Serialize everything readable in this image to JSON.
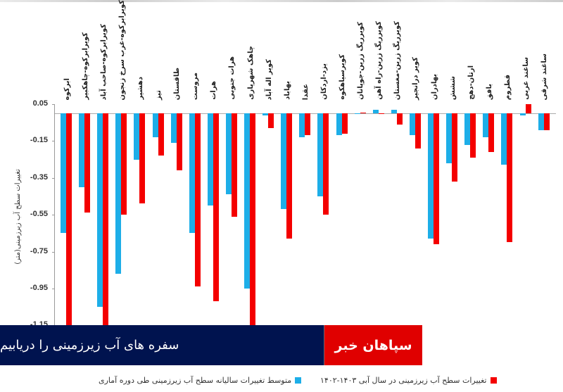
{
  "banner": {
    "brand": "سپاهان خبر",
    "title": "سفره های آب زیرزمینی را دریابیم",
    "brand_color": "#e00000",
    "title_bg_color": "#00134f"
  },
  "chart_data": {
    "type": "bar",
    "title": "",
    "ylabel": "تغییرات سطح آب زیرزمینی(متر)",
    "xlabel": "",
    "ylim": [
      -1.25,
      0.05
    ],
    "yticks": [
      "0.05",
      "-0.15",
      "-0.35",
      "-0.55",
      "-0.75",
      "-0.95",
      "-1.15"
    ],
    "grid": false,
    "legend_position": "bottom",
    "categories": [
      "ابرکوه",
      "کویرابرکوه-چاهکبیر",
      "کویرابرکوه-صاحب آباد",
      "کویرابرکوه-غرب سرخ زنجون",
      "دهشیر",
      "تیز",
      "طاقستان",
      "مروست",
      "هرات",
      "هرات جنوبی",
      "چاهک شهرپاری",
      "کویر اله آباد",
      "بهاباد",
      "عقدا",
      "یزد-اردکان",
      "کویرسیاهکوه",
      "کویرریگ زرین-جوپانان",
      "کویرریگ زرین-راه آهن",
      "کویرریگ زرین-مغستان",
      "کویر درانجیر",
      "بهادران",
      "ششش",
      "ارتان-دهج",
      "بافق",
      "قطروم",
      "ساغند غربی",
      "ساغند شرقی"
    ],
    "series": [
      {
        "name": "متوسط تغییرات سالیانه سطح آب زیرزمینی طی دوره آماری",
        "color": "#1daee8",
        "values": [
          -0.65,
          -0.4,
          -1.05,
          -0.87,
          -0.25,
          -0.13,
          -0.16,
          -0.65,
          -0.5,
          -0.44,
          -0.95,
          -0.01,
          -0.52,
          -0.13,
          -0.45,
          -0.12,
          0.0,
          0.02,
          0.02,
          -0.12,
          -0.68,
          -0.27,
          -0.17,
          -0.13,
          -0.28,
          -0.01,
          -0.09
        ]
      },
      {
        "name": "تغییرات سطح آب زیرزمینی در سال آبی ۱۴۰۲-۱۴۰۳",
        "color": "#f40000",
        "values": [
          -1.25,
          -0.54,
          -1.25,
          -0.55,
          -0.49,
          -0.23,
          -0.31,
          -0.94,
          -1.02,
          -0.56,
          -1.25,
          -0.08,
          -0.68,
          -0.12,
          -0.55,
          -0.11,
          0.005,
          0.0,
          -0.06,
          -0.19,
          -0.71,
          -0.37,
          -0.24,
          -0.21,
          -0.7,
          0.05,
          -0.09
        ]
      }
    ]
  },
  "legend": {
    "blue_label": "متوسط تغییرات سالیانه سطح آب زیرزمینی طی دوره آماری",
    "red_label": "تغییرات سطح آب زیرزمینی در سال آبی ۱۴۰۳-۱۴۰۲"
  }
}
